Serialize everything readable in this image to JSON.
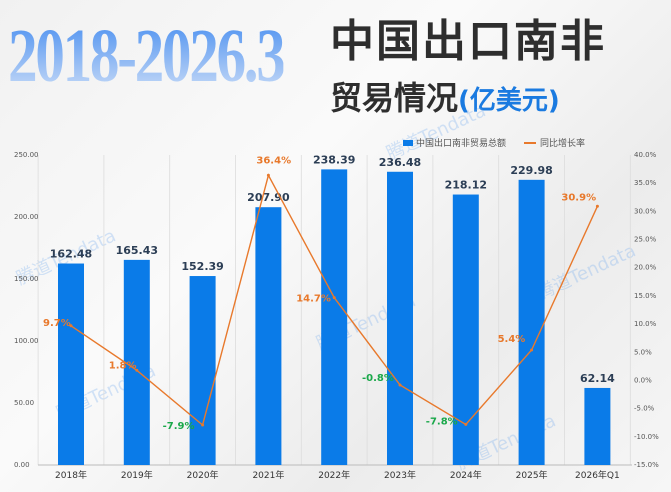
{
  "title": {
    "years": "2018-2026.3",
    "main": "中国出口南非",
    "sub": "贸易情况",
    "unit": "(亿美元)"
  },
  "watermark": "腾道Tendata",
  "colors": {
    "bar": "#0a7be8",
    "line": "#e8792c",
    "positive_label": "#e8792c",
    "negative_label": "#1aa84a"
  },
  "chart_data": {
    "type": "bar+line",
    "categories": [
      "2018年",
      "2019年",
      "2020年",
      "2021年",
      "2022年",
      "2023年",
      "2024年",
      "2025年",
      "2026年Q1"
    ],
    "series": [
      {
        "name": "中国出口南非贸易总额",
        "type": "bar",
        "axis": "left",
        "values": [
          162.48,
          165.43,
          152.39,
          207.9,
          238.39,
          236.48,
          218.12,
          229.98,
          62.14
        ],
        "labels": [
          "162.48",
          "165.43",
          "152.39",
          "207.90",
          "238.39",
          "236.48",
          "218.12",
          "229.98",
          "62.14"
        ]
      },
      {
        "name": "同比增长率",
        "type": "line",
        "axis": "right",
        "values": [
          9.7,
          1.8,
          -7.9,
          36.4,
          14.7,
          -0.8,
          -7.8,
          5.4,
          30.9
        ],
        "labels": [
          "9.7%",
          "1.8%",
          "-7.9%",
          "36.4%",
          "14.7%",
          "-0.8%",
          "-7.8%",
          "5.4%",
          "30.9%"
        ]
      }
    ],
    "left_axis": {
      "ylim": [
        0,
        250
      ],
      "ticks": [
        "0.00",
        "50.00",
        "100.00",
        "150.00",
        "200.00",
        "250.00"
      ]
    },
    "right_axis": {
      "ylim": [
        -15,
        40
      ],
      "ticks": [
        "-15.0%",
        "-10.0%",
        "-5.0%",
        "0.0%",
        "5.0%",
        "10.0%",
        "15.0%",
        "20.0%",
        "25.0%",
        "30.0%",
        "35.0%",
        "40.0%"
      ]
    },
    "legend": "top-right",
    "grid": "vertical separators"
  }
}
